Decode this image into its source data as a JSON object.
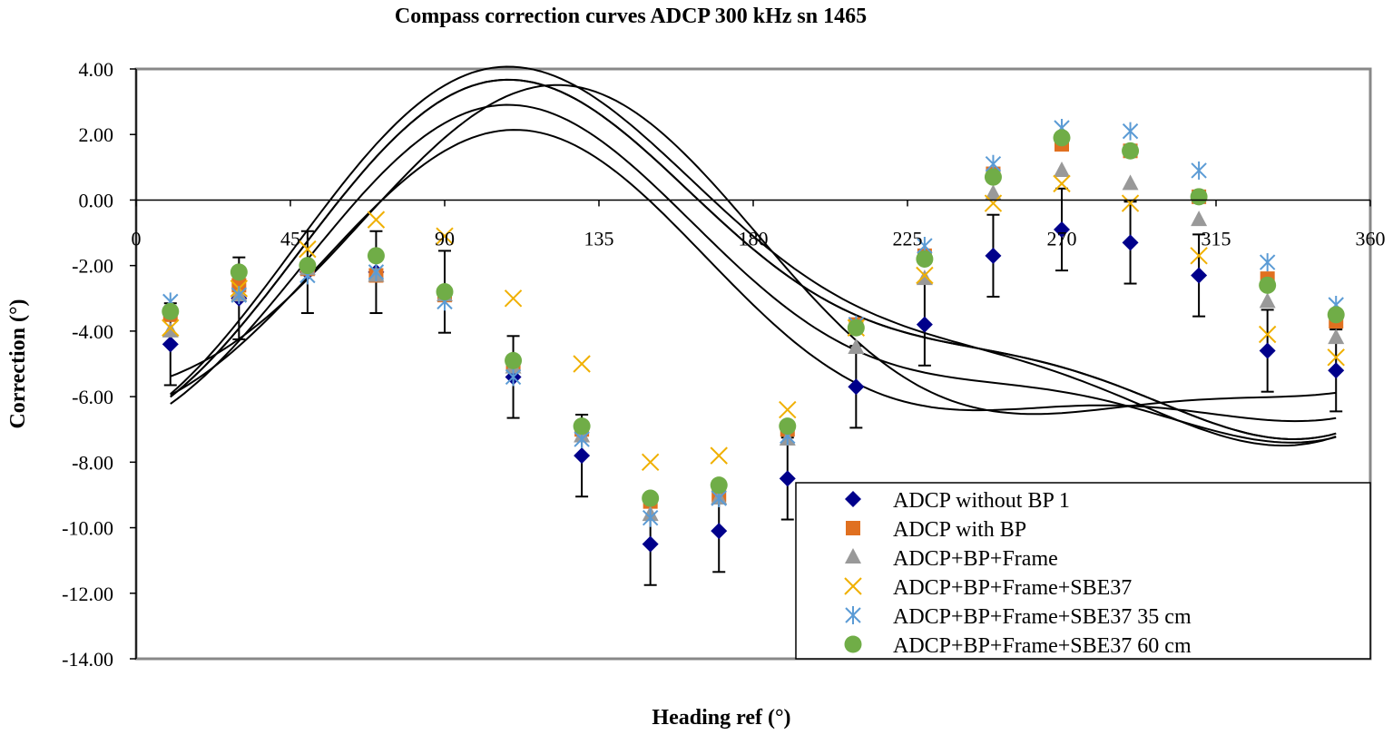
{
  "chart_data": {
    "type": "scatter",
    "title": "Compass correction curves ADCP 300 kHz sn 1465",
    "xlabel": "Heading ref (°)",
    "ylabel": "Correction (°)",
    "xlim": [
      0,
      360
    ],
    "ylim": [
      -14,
      4
    ],
    "x_ticks": [
      "0",
      "45",
      "90",
      "135",
      "180",
      "225",
      "270",
      "315",
      "360"
    ],
    "y_ticks": [
      "4.00",
      "2.00",
      "0.00",
      "-2.00",
      "-4.00",
      "-6.00",
      "-8.00",
      "-10.00",
      "-12.00",
      "-14.00"
    ],
    "grid": false,
    "legend_position": "bottom-right",
    "x": [
      10,
      30,
      50,
      70,
      90,
      110,
      130,
      150,
      170,
      190,
      210,
      230,
      250,
      270,
      290,
      310,
      330,
      350
    ],
    "series": [
      {
        "name": "ADCP without BP 1",
        "marker": "diamond",
        "color": "#00008b",
        "values": [
          -4.4,
          -3.0,
          -2.2,
          -2.2,
          -2.8,
          -5.4,
          -7.8,
          -10.5,
          -10.1,
          -8.5,
          -5.7,
          -3.8,
          -1.7,
          -0.9,
          -1.3,
          -2.3,
          -4.6,
          -5.2
        ],
        "error": 1.25,
        "fit": {
          "a0": -3.6,
          "a1": -1.6,
          "b1": 3.9,
          "a2": -1.2,
          "b2": -0.95
        }
      },
      {
        "name": "ADCP with BP",
        "marker": "square",
        "color": "#e07020",
        "values": [
          -3.5,
          -2.6,
          -2.1,
          -2.3,
          -2.9,
          -5.0,
          -7.0,
          -9.2,
          -9.0,
          -7.0,
          -3.8,
          -1.7,
          0.8,
          1.7,
          1.5,
          0.1,
          -2.4,
          -3.7
        ],
        "fit": {
          "a0": -2.55,
          "a1": -2.6,
          "b1": 4.1,
          "a2": -1.55,
          "b2": -0.45
        }
      },
      {
        "name": "ADCP+BP+Frame",
        "marker": "triangle",
        "color": "#999999",
        "values": [
          -4.0,
          -2.9,
          -2.1,
          -2.3,
          -2.9,
          -5.1,
          -7.2,
          -9.6,
          -9.1,
          -7.3,
          -4.5,
          -2.4,
          0.2,
          0.9,
          0.5,
          -0.6,
          -3.1,
          -4.2
        ],
        "fit": {
          "a0": -3.2,
          "a1": -2.2,
          "b1": 4.1,
          "a2": -1.45,
          "b2": -0.6
        }
      },
      {
        "name": "ADCP+BP+Frame+SBE37",
        "marker": "x",
        "color": "#f0b000",
        "values": [
          -3.9,
          -2.7,
          -1.5,
          -0.6,
          -1.1,
          -3.0,
          -5.0,
          -8.0,
          -7.8,
          -6.4,
          -3.9,
          -2.3,
          -0.1,
          0.5,
          -0.1,
          -1.7,
          -4.1,
          -4.8
        ],
        "fit": {
          "a0": -2.8,
          "a1": -2.4,
          "b1": 4.2,
          "a2": -0.5,
          "b2": -1.4
        }
      },
      {
        "name": "ADCP+BP+Frame+SBE37 35 cm",
        "marker": "asterisk",
        "color": "#5b9bd5",
        "values": [
          -3.1,
          -2.9,
          -2.3,
          -2.2,
          -3.1,
          -5.4,
          -7.3,
          -9.7,
          -9.1,
          -7.2,
          -3.8,
          -1.4,
          1.1,
          2.2,
          2.1,
          0.9,
          -1.9,
          -3.2
        ],
        "fit": {
          "a0": -2.4,
          "a1": -2.8,
          "b1": 4.4,
          "a2": -1.5,
          "b2": -0.35
        }
      },
      {
        "name": "ADCP+BP+Frame+SBE37 60 cm",
        "marker": "circle",
        "color": "#70ad47",
        "values": [
          -3.4,
          -2.2,
          -2.0,
          -1.7,
          -2.8,
          -4.9,
          -6.9,
          -9.1,
          -8.7,
          -6.9,
          -3.9,
          -1.8,
          0.7,
          1.9,
          1.5,
          0.1,
          -2.6,
          -3.5
        ],
        "fit": {
          "a0": -2.55,
          "a1": -2.6,
          "b1": 4.1,
          "a2": -1.55,
          "b2": -0.45
        }
      }
    ]
  }
}
